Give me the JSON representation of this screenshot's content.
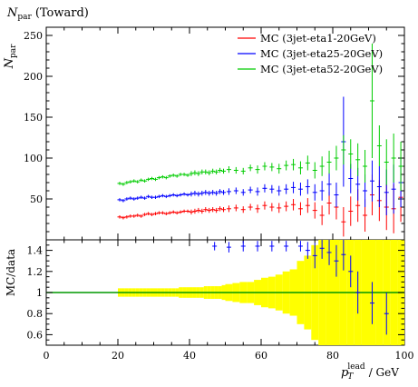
{
  "chart_data": [
    {
      "type": "scatter",
      "title": "N",
      "title_sub": "par",
      "title_suffix": "(Toward)",
      "ylabel_main": "N",
      "ylabel_sub": "par",
      "xlabel": "",
      "xlim": [
        0,
        100
      ],
      "ylim": [
        0,
        260
      ],
      "yticks": [
        50,
        100,
        150,
        200,
        250
      ],
      "legend_position": "top-right",
      "series": [
        {
          "name": "MC (3jet-eta1-20GeV)",
          "color": "#ff0000",
          "x": [
            20.5,
            21.5,
            22.5,
            23.5,
            24.5,
            25.5,
            26.5,
            27.5,
            28.5,
            29.5,
            30.5,
            31.5,
            32.5,
            33.5,
            34.5,
            35.5,
            36.5,
            37.5,
            38.5,
            39.5,
            40.5,
            41.5,
            42.5,
            43.5,
            44.5,
            45.5,
            46.5,
            47.5,
            48.5,
            49.5,
            51,
            53,
            55,
            57,
            59,
            61,
            63,
            65,
            67,
            69,
            71,
            73,
            75,
            77,
            79,
            81,
            83,
            85,
            87,
            89,
            91,
            93,
            95,
            97,
            99
          ],
          "y": [
            28,
            27,
            28,
            29,
            29,
            30,
            29,
            31,
            32,
            31,
            32,
            33,
            33,
            32,
            33,
            34,
            33,
            34,
            35,
            35,
            34,
            35,
            36,
            35,
            37,
            36,
            37,
            36,
            38,
            37,
            38,
            39,
            37,
            40,
            38,
            42,
            40,
            39,
            41,
            43,
            38,
            42,
            36,
            30,
            45,
            40,
            22,
            35,
            42,
            30,
            55,
            48,
            40,
            38,
            52
          ],
          "yerr": [
            2,
            2,
            2,
            2,
            2,
            2,
            2,
            2,
            2,
            2,
            2,
            2,
            2,
            2,
            2,
            2,
            2,
            2,
            2,
            2,
            3,
            3,
            3,
            3,
            3,
            3,
            3,
            3,
            3,
            3,
            4,
            4,
            4,
            4,
            5,
            5,
            5,
            6,
            6,
            7,
            8,
            9,
            10,
            12,
            14,
            15,
            18,
            18,
            20,
            20,
            25,
            25,
            28,
            30,
            30
          ]
        },
        {
          "name": "MC (3jet-eta25-20GeV)",
          "color": "#0000ff",
          "x": [
            20.5,
            21.5,
            22.5,
            23.5,
            24.5,
            25.5,
            26.5,
            27.5,
            28.5,
            29.5,
            30.5,
            31.5,
            32.5,
            33.5,
            34.5,
            35.5,
            36.5,
            37.5,
            38.5,
            39.5,
            40.5,
            41.5,
            42.5,
            43.5,
            44.5,
            45.5,
            46.5,
            47.5,
            48.5,
            49.5,
            51,
            53,
            55,
            57,
            59,
            61,
            63,
            65,
            67,
            69,
            71,
            73,
            75,
            77,
            79,
            81,
            83,
            85,
            87,
            89,
            91,
            93,
            95,
            97,
            99
          ],
          "y": [
            49,
            48,
            50,
            51,
            50,
            51,
            52,
            51,
            53,
            52,
            52,
            53,
            54,
            53,
            54,
            55,
            54,
            55,
            56,
            55,
            56,
            57,
            56,
            57,
            58,
            57,
            58,
            57,
            59,
            58,
            59,
            60,
            58,
            61,
            59,
            63,
            62,
            60,
            62,
            64,
            62,
            65,
            58,
            60,
            68,
            55,
            120,
            75,
            68,
            60,
            72,
            65,
            58,
            62,
            70
          ],
          "yerr": [
            2,
            2,
            2,
            2,
            2,
            2,
            2,
            2,
            2,
            2,
            2,
            2,
            2,
            2,
            2,
            2,
            2,
            2,
            2,
            2,
            3,
            3,
            3,
            3,
            3,
            3,
            3,
            3,
            3,
            3,
            4,
            4,
            4,
            4,
            5,
            5,
            5,
            6,
            6,
            7,
            8,
            9,
            10,
            12,
            14,
            15,
            55,
            18,
            20,
            20,
            25,
            25,
            28,
            30,
            30
          ]
        },
        {
          "name": "MC (3jet-eta52-20GeV)",
          "color": "#00cc00",
          "x": [
            20.5,
            21.5,
            22.5,
            23.5,
            24.5,
            25.5,
            26.5,
            27.5,
            28.5,
            29.5,
            30.5,
            31.5,
            32.5,
            33.5,
            34.5,
            35.5,
            36.5,
            37.5,
            38.5,
            39.5,
            40.5,
            41.5,
            42.5,
            43.5,
            44.5,
            45.5,
            46.5,
            47.5,
            48.5,
            49.5,
            51,
            53,
            55,
            57,
            59,
            61,
            63,
            65,
            67,
            69,
            71,
            73,
            75,
            77,
            79,
            81,
            83,
            85,
            87,
            89,
            91,
            93,
            95,
            97,
            99
          ],
          "y": [
            69,
            68,
            70,
            71,
            72,
            71,
            73,
            72,
            74,
            75,
            74,
            76,
            77,
            76,
            78,
            79,
            78,
            80,
            80,
            79,
            81,
            82,
            81,
            83,
            83,
            82,
            84,
            83,
            85,
            84,
            86,
            85,
            84,
            88,
            86,
            90,
            89,
            87,
            91,
            92,
            88,
            94,
            85,
            90,
            95,
            100,
            110,
            105,
            98,
            90,
            170,
            115,
            95,
            100,
            90
          ],
          "yerr": [
            2,
            2,
            2,
            2,
            2,
            2,
            2,
            2,
            2,
            2,
            2,
            2,
            2,
            2,
            2,
            2,
            2,
            2,
            2,
            2,
            3,
            3,
            3,
            3,
            3,
            3,
            3,
            3,
            3,
            3,
            4,
            4,
            4,
            4,
            5,
            5,
            5,
            6,
            6,
            7,
            8,
            9,
            10,
            12,
            14,
            15,
            18,
            18,
            20,
            20,
            70,
            25,
            28,
            30,
            30
          ]
        }
      ]
    },
    {
      "type": "scatter",
      "title": "",
      "ylabel": "MC/data",
      "xlabel_main": "p",
      "xlabel_sub": "T",
      "xlabel_sup": "lead",
      "xlabel_unit": "/ GeV",
      "xlim": [
        0,
        100
      ],
      "ylim": [
        0.5,
        1.5
      ],
      "yticks": [
        0.6,
        0.8,
        1,
        1.2,
        1.4
      ],
      "xticks": [
        0,
        20,
        40,
        60,
        80,
        100
      ],
      "reference_line": 1,
      "reference_color": "#009900",
      "band_color": "#ffff00",
      "band": {
        "x_lo": [
          20,
          21,
          22,
          23,
          24,
          25,
          26,
          27,
          28,
          29,
          30,
          31,
          32,
          33,
          34,
          35,
          36,
          37,
          38,
          39,
          40,
          41,
          42,
          43,
          44,
          45,
          46,
          47,
          48,
          49,
          50,
          52,
          54,
          56,
          58,
          60,
          62,
          64,
          66,
          68,
          70,
          72,
          74,
          76,
          78,
          80,
          82,
          84,
          86,
          88,
          90,
          92,
          94,
          96,
          98
        ],
        "x_hi": [
          21,
          22,
          23,
          24,
          25,
          26,
          27,
          28,
          29,
          30,
          31,
          32,
          33,
          34,
          35,
          36,
          37,
          38,
          39,
          40,
          41,
          42,
          43,
          44,
          45,
          46,
          47,
          48,
          49,
          50,
          52,
          54,
          56,
          58,
          60,
          62,
          64,
          66,
          68,
          70,
          72,
          74,
          76,
          78,
          80,
          82,
          84,
          86,
          88,
          90,
          92,
          94,
          96,
          98,
          100
        ],
        "half_width": [
          0.04,
          0.04,
          0.04,
          0.04,
          0.04,
          0.04,
          0.04,
          0.04,
          0.04,
          0.04,
          0.04,
          0.04,
          0.04,
          0.04,
          0.04,
          0.04,
          0.04,
          0.05,
          0.05,
          0.05,
          0.05,
          0.05,
          0.05,
          0.05,
          0.06,
          0.06,
          0.06,
          0.06,
          0.06,
          0.07,
          0.08,
          0.09,
          0.1,
          0.1,
          0.12,
          0.14,
          0.15,
          0.17,
          0.2,
          0.22,
          0.3,
          0.35,
          0.45,
          0.5,
          0.5,
          0.5,
          0.5,
          0.5,
          0.5,
          0.5,
          0.5,
          0.5,
          0.5,
          0.5,
          0.5
        ]
      },
      "ratio_points": {
        "color": "#0000ff",
        "x": [
          47,
          51,
          55,
          59,
          63,
          67,
          71,
          73,
          75,
          77,
          79,
          81,
          83,
          85,
          87,
          91,
          95
        ],
        "y": [
          1.44,
          1.43,
          1.44,
          1.44,
          1.44,
          1.44,
          1.44,
          1.4,
          1.35,
          1.42,
          1.38,
          1.3,
          1.36,
          1.2,
          1.0,
          0.9,
          0.8
        ],
        "yerr": [
          0.04,
          0.05,
          0.05,
          0.05,
          0.05,
          0.05,
          0.05,
          0.08,
          0.12,
          0.1,
          0.12,
          0.15,
          0.15,
          0.15,
          0.2,
          0.2,
          0.2
        ]
      }
    }
  ]
}
